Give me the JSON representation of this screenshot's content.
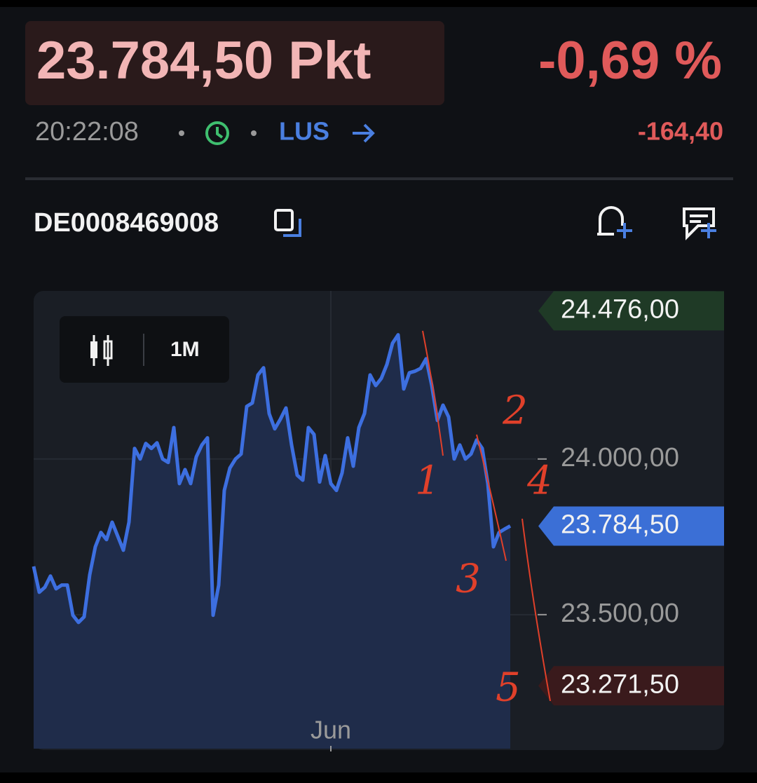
{
  "header": {
    "price": "23.784,50 Pkt",
    "change_percent": "-0,69 %",
    "time": "20:22:08",
    "exchange": "LUS",
    "change_absolute": "-164,40"
  },
  "instrument": {
    "isin": "DE0008469008"
  },
  "chart_controls": {
    "interval": "1M"
  },
  "chart_data": {
    "type": "line",
    "categories": [
      null,
      null,
      null,
      null,
      null,
      null,
      null,
      null,
      null,
      null,
      null,
      null,
      null,
      null,
      null,
      null,
      null,
      null,
      null,
      null,
      null,
      null,
      null,
      null,
      null,
      null,
      null,
      null,
      null,
      null,
      null,
      null,
      null,
      null,
      null,
      null,
      null,
      null,
      null,
      null,
      null,
      null,
      null,
      null,
      null,
      null,
      null,
      null,
      null,
      null,
      null,
      null,
      null,
      "Jun",
      null,
      null,
      null,
      null,
      null,
      null,
      null,
      null,
      null,
      null,
      null,
      null,
      null,
      null,
      null,
      null,
      null,
      null,
      null,
      null,
      null,
      null,
      null,
      null,
      null,
      null,
      null,
      null,
      null,
      null,
      null,
      null
    ],
    "series": [
      {
        "color": "#3d6fe0",
        "values": [
          23655,
          23572,
          23588,
          23624,
          23583,
          23595,
          23595,
          23498,
          23475,
          23493,
          23628,
          23718,
          23764,
          23741,
          23797,
          23752,
          23707,
          23797,
          24034,
          24000,
          24050,
          24034,
          24052,
          24000,
          23989,
          24101,
          23921,
          23966,
          23921,
          24007,
          24045,
          24068,
          23498,
          23595,
          23899,
          23971,
          24000,
          24016,
          24169,
          24180,
          24270,
          24293,
          24146,
          24097,
          24128,
          24164,
          24045,
          23948,
          23932,
          24101,
          24079,
          23926,
          24011,
          23921,
          23899,
          23955,
          24068,
          23977,
          24101,
          24146,
          24270,
          24236,
          24259,
          24304,
          24372,
          24399,
          24225,
          24277,
          24282,
          24291,
          24322,
          24236,
          24124,
          24173,
          24135,
          24000,
          24045,
          24000,
          24016,
          24061,
          24034,
          23921,
          23718,
          23764,
          23775,
          23785
        ]
      }
    ],
    "ylim": [
      23065,
      24540
    ],
    "yticks": [
      {
        "value": 24000,
        "label": "24.000,00"
      },
      {
        "value": 23500,
        "label": "23.500,00"
      }
    ],
    "grid": true,
    "markers": [
      {
        "value": 24476,
        "label": "24.476,00",
        "color": "#1f3a26"
      },
      {
        "value": 23784.5,
        "label": "23.784,50",
        "color": "#3b6fd6"
      },
      {
        "value": 23271.5,
        "label": "23.271,50",
        "color": "#3a1a1c"
      }
    ],
    "annotations": [
      "1",
      "2",
      "3",
      "4",
      "5"
    ]
  }
}
